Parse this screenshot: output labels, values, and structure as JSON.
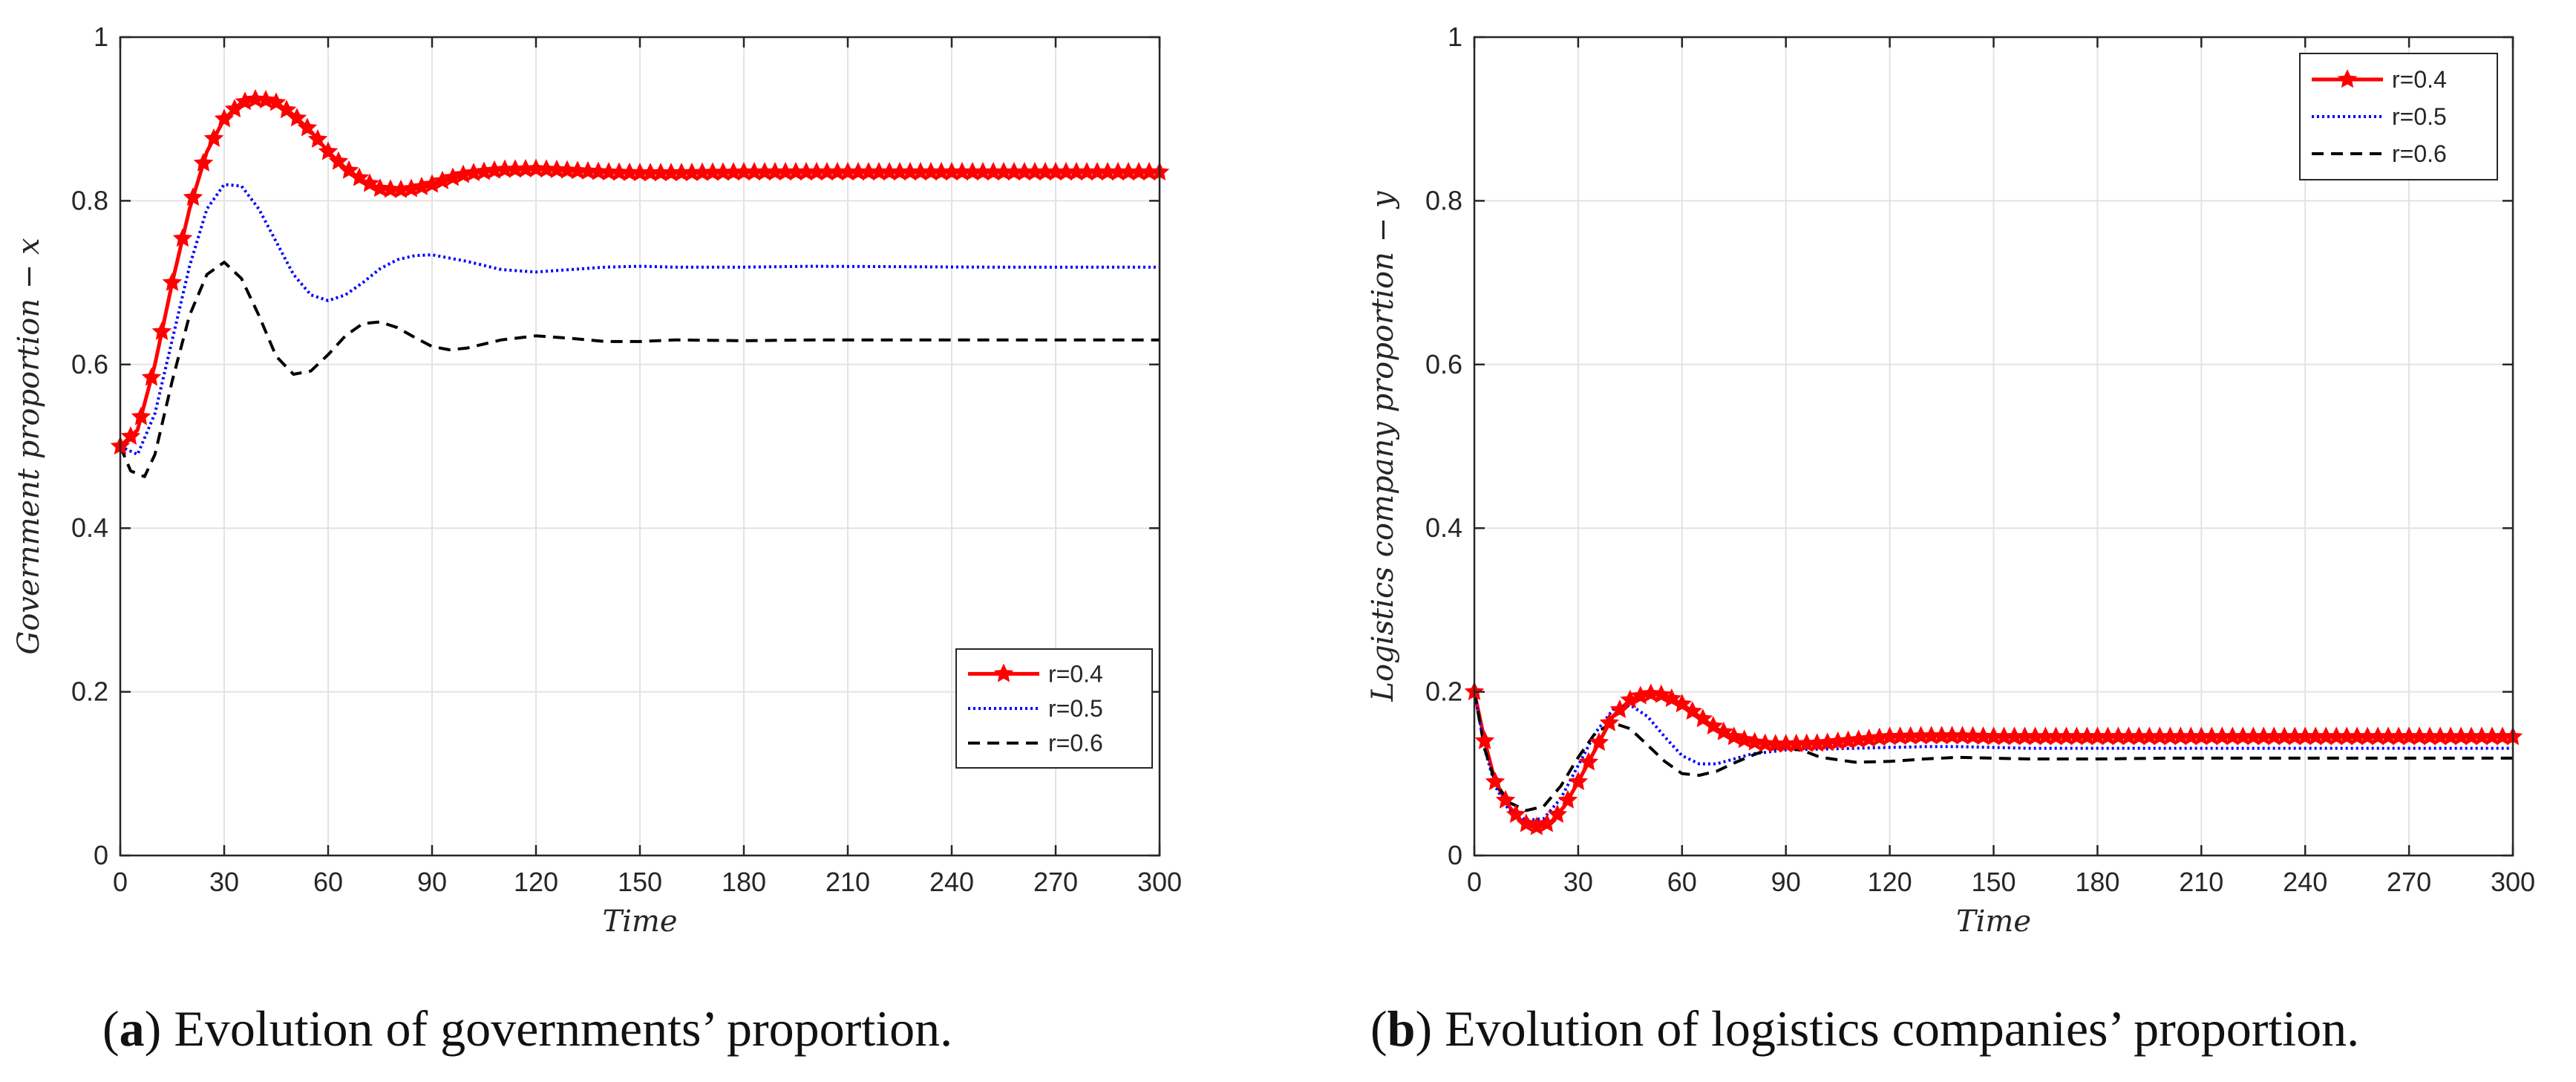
{
  "chart_data": [
    {
      "type": "line",
      "caption_letter": "a",
      "caption_text": "Evolution of governments’ proportion.",
      "xlabel": "Time",
      "ylabel": "Government proportion − x",
      "xlim": [
        0,
        300
      ],
      "ylim": [
        0,
        1
      ],
      "xticks": [
        0,
        30,
        60,
        90,
        120,
        150,
        180,
        210,
        240,
        270,
        300
      ],
      "yticks": [
        0,
        0.2,
        0.4,
        0.6,
        0.8,
        1
      ],
      "ytick_labels": [
        "0",
        "0.2",
        "0.4",
        "0.6",
        "0.8",
        "1"
      ],
      "grid": true,
      "legend_position": "lower-right",
      "series": [
        {
          "name": "r=0.4",
          "color": "#ff0000",
          "style": "solid-star",
          "x": [
            0,
            5,
            10,
            15,
            20,
            25,
            30,
            35,
            40,
            45,
            50,
            55,
            60,
            65,
            70,
            75,
            80,
            85,
            90,
            95,
            100,
            110,
            120,
            130,
            140,
            150,
            160,
            180,
            200,
            250,
            300
          ],
          "y": [
            0.5,
            0.52,
            0.6,
            0.7,
            0.79,
            0.86,
            0.9,
            0.92,
            0.925,
            0.92,
            0.905,
            0.885,
            0.86,
            0.84,
            0.825,
            0.815,
            0.813,
            0.815,
            0.82,
            0.827,
            0.833,
            0.838,
            0.839,
            0.837,
            0.835,
            0.834,
            0.834,
            0.835,
            0.835,
            0.835,
            0.835
          ]
        },
        {
          "name": "r=0.5",
          "color": "#0000ff",
          "style": "dotted",
          "x": [
            0,
            5,
            10,
            15,
            20,
            25,
            30,
            35,
            40,
            45,
            50,
            55,
            60,
            65,
            70,
            75,
            80,
            85,
            90,
            100,
            110,
            120,
            130,
            140,
            150,
            160,
            180,
            200,
            250,
            300
          ],
          "y": [
            0.5,
            0.49,
            0.54,
            0.63,
            0.72,
            0.79,
            0.82,
            0.818,
            0.79,
            0.75,
            0.71,
            0.685,
            0.678,
            0.685,
            0.7,
            0.717,
            0.728,
            0.733,
            0.734,
            0.726,
            0.716,
            0.713,
            0.716,
            0.719,
            0.72,
            0.719,
            0.719,
            0.72,
            0.719,
            0.719
          ]
        },
        {
          "name": "r=0.6",
          "color": "#000000",
          "style": "dashed",
          "x": [
            0,
            3,
            7,
            10,
            15,
            20,
            25,
            30,
            35,
            40,
            45,
            50,
            55,
            60,
            65,
            70,
            75,
            80,
            85,
            90,
            95,
            100,
            110,
            120,
            130,
            140,
            150,
            160,
            180,
            200,
            250,
            300
          ],
          "y": [
            0.5,
            0.47,
            0.463,
            0.49,
            0.58,
            0.66,
            0.71,
            0.725,
            0.705,
            0.66,
            0.61,
            0.588,
            0.592,
            0.612,
            0.635,
            0.65,
            0.652,
            0.645,
            0.633,
            0.622,
            0.618,
            0.62,
            0.63,
            0.635,
            0.632,
            0.628,
            0.628,
            0.63,
            0.629,
            0.63,
            0.63,
            0.63
          ]
        }
      ]
    },
    {
      "type": "line",
      "caption_letter": "b",
      "caption_text": "Evolution of logistics companies’ proportion.",
      "xlabel": "Time",
      "ylabel": "Logistics company proportion − y",
      "xlim": [
        0,
        300
      ],
      "ylim": [
        0,
        1
      ],
      "xticks": [
        0,
        30,
        60,
        90,
        120,
        150,
        180,
        210,
        240,
        270,
        300
      ],
      "yticks": [
        0,
        0.2,
        0.4,
        0.6,
        0.8,
        1
      ],
      "ytick_labels": [
        "0",
        "0.2",
        "0.4",
        "0.6",
        "0.8",
        "1"
      ],
      "grid": true,
      "legend_position": "top-right",
      "series": [
        {
          "name": "r=0.4",
          "color": "#ff0000",
          "style": "solid-star",
          "x": [
            0,
            3,
            6,
            10,
            14,
            18,
            22,
            26,
            30,
            35,
            40,
            45,
            50,
            55,
            60,
            65,
            70,
            75,
            80,
            85,
            90,
            100,
            110,
            120,
            130,
            140,
            150,
            160,
            180,
            200,
            250,
            300
          ],
          "y": [
            0.2,
            0.14,
            0.09,
            0.06,
            0.04,
            0.035,
            0.04,
            0.06,
            0.09,
            0.13,
            0.17,
            0.19,
            0.198,
            0.196,
            0.185,
            0.17,
            0.155,
            0.145,
            0.139,
            0.136,
            0.136,
            0.137,
            0.141,
            0.145,
            0.146,
            0.146,
            0.145,
            0.145,
            0.145,
            0.145,
            0.145,
            0.145
          ]
        },
        {
          "name": "r=0.5",
          "color": "#0000ff",
          "style": "dotted",
          "x": [
            0,
            3,
            6,
            10,
            15,
            20,
            25,
            30,
            35,
            40,
            45,
            50,
            55,
            60,
            65,
            70,
            75,
            80,
            90,
            100,
            110,
            120,
            130,
            140,
            150,
            160,
            180,
            200,
            250,
            300
          ],
          "y": [
            0.2,
            0.13,
            0.085,
            0.055,
            0.043,
            0.045,
            0.07,
            0.11,
            0.15,
            0.178,
            0.184,
            0.17,
            0.145,
            0.122,
            0.112,
            0.112,
            0.118,
            0.124,
            0.129,
            0.13,
            0.131,
            0.132,
            0.133,
            0.133,
            0.132,
            0.131,
            0.131,
            0.131,
            0.131,
            0.131
          ]
        },
        {
          "name": "r=0.6",
          "color": "#000000",
          "style": "dashed",
          "x": [
            0,
            3,
            6,
            10,
            15,
            20,
            25,
            30,
            35,
            40,
            45,
            50,
            55,
            60,
            65,
            70,
            75,
            80,
            85,
            90,
            95,
            100,
            110,
            120,
            130,
            140,
            150,
            160,
            180,
            200,
            250,
            300
          ],
          "y": [
            0.2,
            0.13,
            0.09,
            0.065,
            0.055,
            0.06,
            0.085,
            0.12,
            0.15,
            0.162,
            0.155,
            0.135,
            0.115,
            0.1,
            0.098,
            0.103,
            0.113,
            0.122,
            0.13,
            0.132,
            0.128,
            0.12,
            0.114,
            0.115,
            0.118,
            0.12,
            0.119,
            0.118,
            0.118,
            0.119,
            0.119,
            0.119
          ]
        }
      ]
    }
  ]
}
